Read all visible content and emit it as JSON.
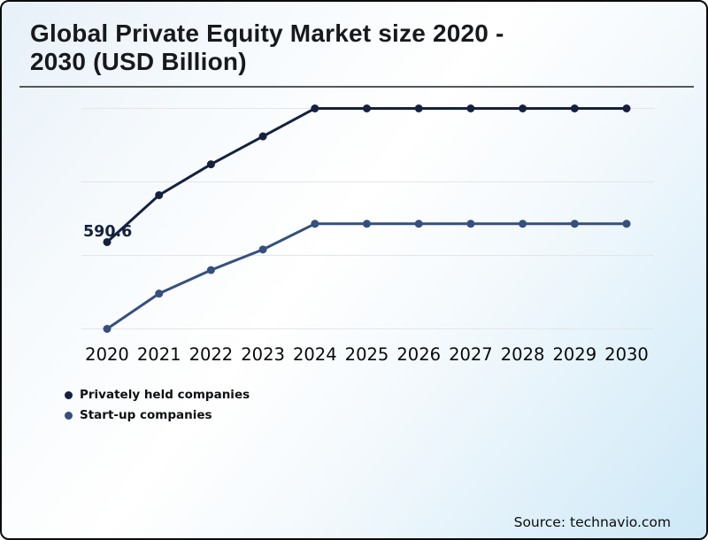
{
  "header": {
    "title_line1": "Global Private Equity Market size 2020 -",
    "title_line2": "2030 (USD Billion)"
  },
  "source": {
    "label": "Source: technavio.com"
  },
  "legend": {
    "items": [
      {
        "label": "Privately held companies",
        "color": "#15213e"
      },
      {
        "label": "Start-up companies",
        "color": "#35507e"
      }
    ]
  },
  "chart_data": {
    "type": "line",
    "title": "Global Private Equity Market size 2020 - 2030 (USD Billion)",
    "xlabel": "",
    "ylabel": "",
    "categories": [
      "2020",
      "2021",
      "2022",
      "2023",
      "2024",
      "2025",
      "2026",
      "2027",
      "2028",
      "2029",
      "2030"
    ],
    "series": [
      {
        "name": "Privately held companies",
        "color": "#15213e",
        "values": [
          590.6,
          910,
          1120,
          1310,
          1500,
          1500,
          1500,
          1500,
          1500,
          1500,
          1500
        ]
      },
      {
        "name": "Start-up companies",
        "color": "#35507e",
        "values": [
          0,
          240,
          400,
          540,
          715,
          715,
          715,
          715,
          715,
          715,
          715
        ]
      }
    ],
    "ylim": [
      0,
      1500
    ],
    "gridline_values": [
      0,
      500,
      1000,
      1500
    ],
    "grid_color": "#e4e6e8",
    "y_axis_labels_visible": false,
    "grid": "horizontal-only",
    "legend_position": "bottom-left",
    "data_labels": [
      {
        "series": "Privately held companies",
        "category": "2020",
        "text": "590.6"
      }
    ]
  }
}
